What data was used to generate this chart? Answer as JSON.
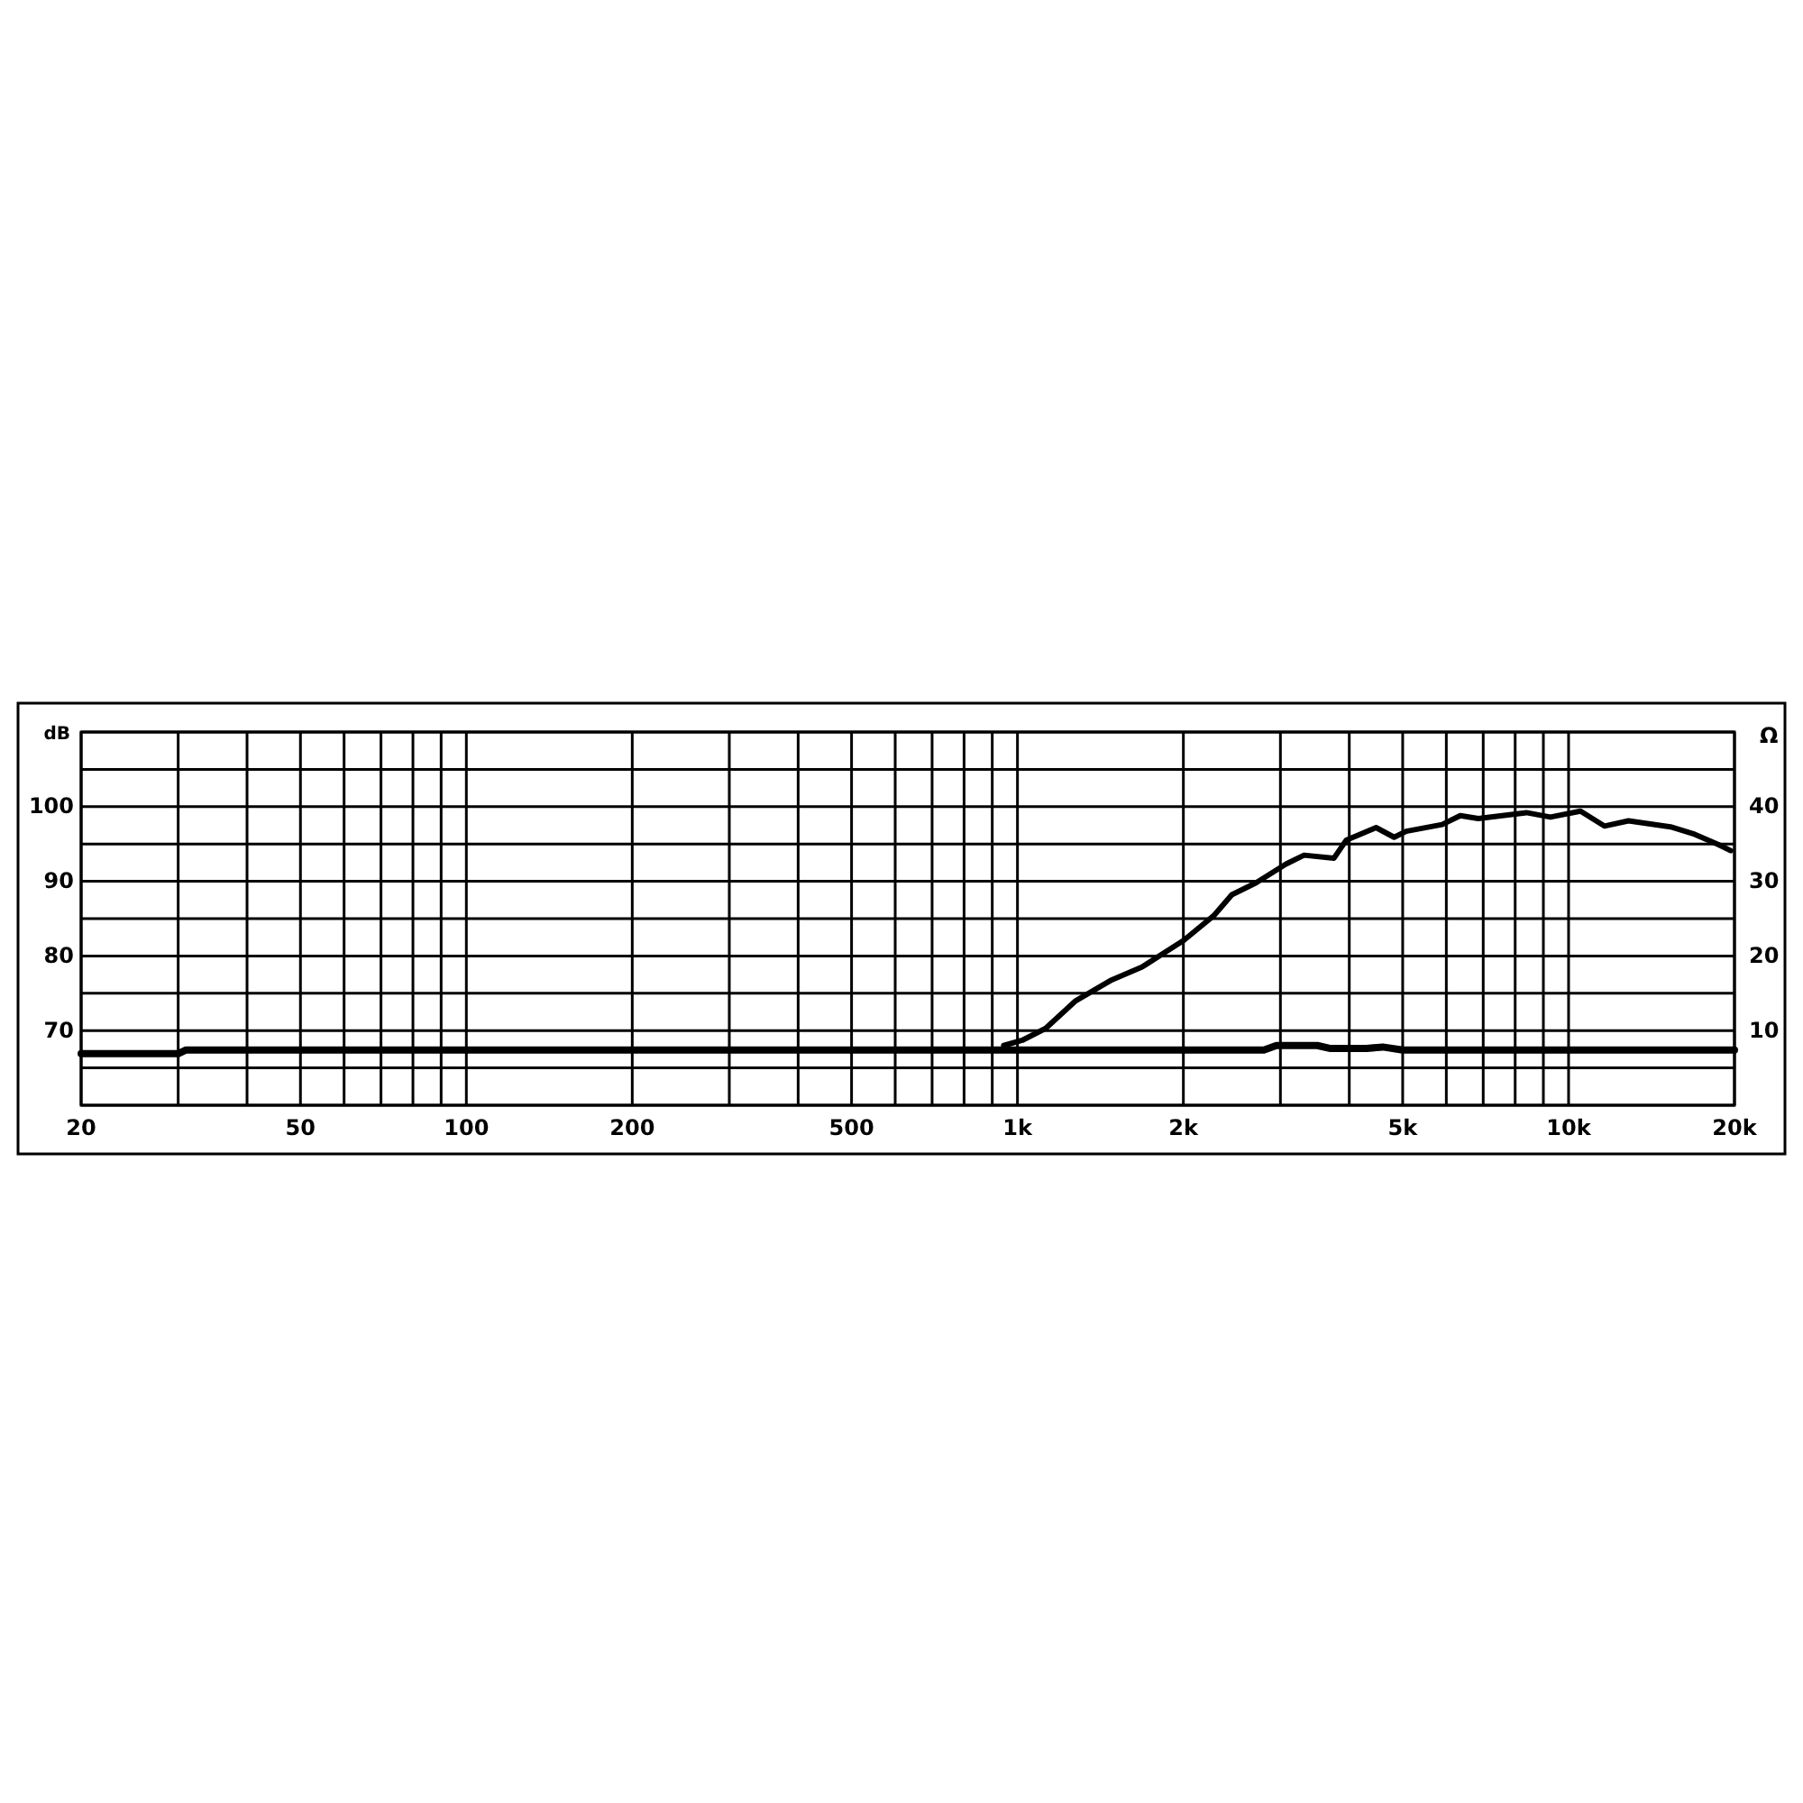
{
  "chart_data": {
    "type": "line",
    "ylabel": "dB",
    "y2label": "Ω",
    "log": "x",
    "grid": true,
    "xlim": [
      20,
      20000
    ],
    "xticks": [
      20,
      {
        "value": 30,
        "label": null
      },
      {
        "value": 40,
        "label": null
      },
      50,
      {
        "value": 60,
        "label": null
      },
      {
        "value": 70,
        "label": null
      },
      {
        "value": 80,
        "label": null
      },
      {
        "value": 90,
        "label": null
      },
      100,
      200,
      {
        "value": 300,
        "label": null
      },
      {
        "value": 400,
        "label": null
      },
      500,
      {
        "value": 600,
        "label": null
      },
      {
        "value": 700,
        "label": null
      },
      {
        "value": 800,
        "label": null
      },
      {
        "value": 900,
        "label": null
      },
      {
        "value": 1000,
        "label": "1k"
      },
      {
        "value": 2000,
        "label": "2k"
      },
      {
        "value": 3000,
        "label": null
      },
      {
        "value": 4000,
        "label": null
      },
      {
        "value": 5000,
        "label": "5k"
      },
      {
        "value": 6000,
        "label": null
      },
      {
        "value": 7000,
        "label": null
      },
      {
        "value": 8000,
        "label": null
      },
      {
        "value": 9000,
        "label": null
      },
      {
        "value": 10000,
        "label": "10k"
      },
      {
        "value": 20000,
        "label": "20k"
      }
    ],
    "ylim": [
      60,
      110
    ],
    "yticks": [
      {
        "value": 60,
        "label": null
      },
      {
        "value": 65,
        "label": null
      },
      70,
      {
        "value": 75,
        "label": null
      },
      80,
      {
        "value": 85,
        "label": null
      },
      90,
      {
        "value": 95,
        "label": null
      },
      100,
      {
        "value": 105,
        "label": null
      },
      {
        "value": 110,
        "label": null
      }
    ],
    "y2lim": [
      0,
      50
    ],
    "y2ticks": [
      10,
      20,
      30,
      40
    ],
    "series": [
      {
        "color": "#000000",
        "x": [
          944,
          1020,
          1125,
          1276,
          1483,
          1681,
          2004,
          2271,
          2449,
          2710,
          3070,
          3311,
          3753,
          3948,
          4474,
          4825,
          5073,
          5897,
          6361,
          6858,
          8384,
          9268,
          10510,
          11614,
          12846,
          15311,
          16934,
          18722,
          19690
        ],
        "values": [
          68,
          68.7,
          70.3,
          74,
          76.8,
          78.5,
          82.1,
          85.4,
          88.2,
          89.8,
          92.3,
          93.5,
          93.1,
          95.5,
          97.2,
          95.9,
          96.7,
          97.6,
          98.8,
          98.4,
          99.2,
          98.6,
          99.4,
          97.4,
          98.1,
          97.3,
          96.3,
          94.9,
          94.1
        ]
      },
      {
        "color": "#000000",
        "axis": "y2",
        "x": [
          20,
          30,
          31,
          2800,
          2950,
          3500,
          3700,
          4300,
          4600,
          5000,
          20000
        ],
        "values": [
          6.9,
          6.9,
          7.4,
          7.4,
          8.0,
          8.0,
          7.6,
          7.6,
          7.8,
          7.4,
          7.4
        ]
      }
    ]
  }
}
